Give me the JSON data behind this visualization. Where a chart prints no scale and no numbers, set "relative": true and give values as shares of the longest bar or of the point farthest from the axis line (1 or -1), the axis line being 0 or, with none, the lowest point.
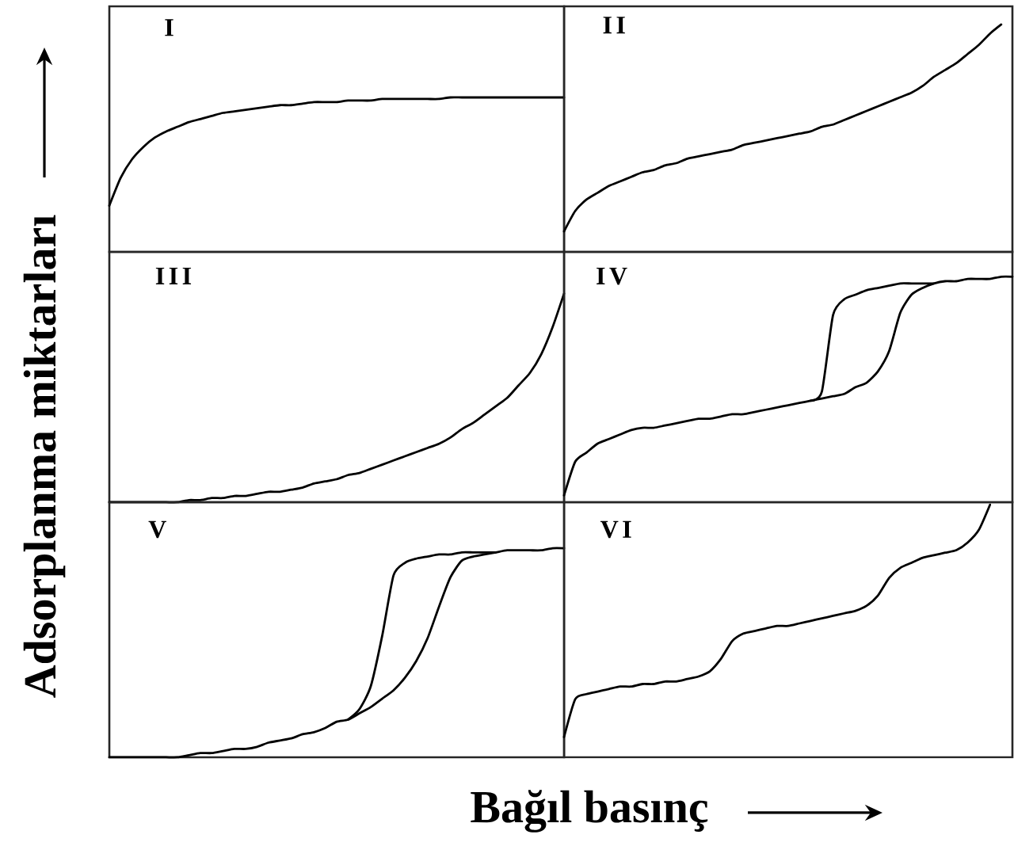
{
  "chart_data": [
    {
      "type": "line",
      "title": "I",
      "relative": true,
      "categories": [
        null,
        null,
        null,
        null,
        null,
        null,
        null,
        null,
        null,
        null,
        null,
        null,
        null,
        null,
        null,
        null,
        null,
        null,
        null,
        null,
        null,
        null,
        null,
        null,
        null,
        null,
        null,
        null,
        null,
        null,
        null,
        null,
        null,
        null,
        null,
        null,
        null,
        null,
        null,
        null,
        null
      ],
      "series": [
        {
          "color": "#000000",
          "values": [
            0.3,
            0.48,
            0.6,
            0.68,
            0.74,
            0.78,
            0.81,
            0.84,
            0.86,
            0.88,
            0.9,
            0.91,
            0.92,
            0.93,
            0.94,
            0.95,
            0.95,
            0.96,
            0.97,
            0.97,
            0.97,
            0.98,
            0.98,
            0.98,
            0.99,
            0.99,
            0.99,
            0.99,
            0.99,
            0.99,
            1.0,
            1.0,
            1.0,
            1.0,
            1.0,
            1.0,
            1.0,
            1.0,
            1.0,
            1.0,
            1.0
          ]
        }
      ]
    },
    {
      "type": "line",
      "title": "II",
      "relative": true,
      "categories": [
        null,
        null,
        null,
        null,
        null,
        null,
        null,
        null,
        null,
        null,
        null,
        null,
        null,
        null,
        null,
        null,
        null,
        null,
        null,
        null,
        null,
        null,
        null,
        null,
        null,
        null,
        null,
        null,
        null,
        null,
        null,
        null,
        null,
        null,
        null,
        null,
        null,
        null,
        null,
        null,
        null
      ],
      "series": [
        {
          "color": "#000000",
          "values": [
            0.09,
            0.18,
            0.23,
            0.26,
            0.29,
            0.31,
            0.33,
            0.35,
            0.36,
            0.38,
            0.39,
            0.41,
            0.42,
            0.43,
            0.44,
            0.45,
            0.47,
            0.48,
            0.49,
            0.5,
            0.51,
            0.52,
            0.53,
            0.55,
            0.56,
            0.58,
            0.6,
            0.62,
            0.64,
            0.66,
            0.68,
            0.7,
            0.73,
            0.77,
            0.8,
            0.83,
            0.87,
            0.91,
            0.96,
            1.0,
            null
          ]
        }
      ]
    },
    {
      "type": "line",
      "title": "III",
      "relative": true,
      "ylabel": "Adsorplanma miktarları",
      "categories": [
        null,
        null,
        null,
        null,
        null,
        null,
        null,
        null,
        null,
        null,
        null,
        null,
        null,
        null,
        null,
        null,
        null,
        null,
        null,
        null,
        null,
        null,
        null,
        null,
        null,
        null,
        null,
        null,
        null,
        null,
        null,
        null,
        null,
        null,
        null,
        null,
        null,
        null,
        null,
        null,
        null
      ],
      "series": [
        {
          "color": "#000000",
          "values": [
            0,
            0,
            0,
            0,
            0,
            0,
            0,
            0.01,
            0.01,
            0.02,
            0.02,
            0.03,
            0.03,
            0.04,
            0.05,
            0.05,
            0.06,
            0.07,
            0.09,
            0.1,
            0.11,
            0.13,
            0.14,
            0.16,
            0.18,
            0.2,
            0.22,
            0.24,
            0.26,
            0.28,
            0.31,
            0.35,
            0.38,
            0.42,
            0.46,
            0.5,
            0.56,
            0.62,
            0.71,
            0.84,
            1.0
          ]
        }
      ]
    },
    {
      "type": "line",
      "title": "IV",
      "relative": true,
      "categories": [
        null,
        null,
        null,
        null,
        null,
        null,
        null,
        null,
        null,
        null,
        null,
        null,
        null,
        null,
        null,
        null,
        null,
        null,
        null,
        null,
        null,
        null,
        null,
        null,
        null,
        null,
        null,
        null,
        null,
        null,
        null,
        null,
        null,
        null,
        null,
        null,
        null,
        null,
        null,
        null,
        null
      ],
      "series": [
        {
          "color": "#000000",
          "values": [
            0.03,
            0.18,
            0.22,
            0.26,
            0.28,
            0.3,
            0.32,
            0.33,
            0.33,
            0.34,
            0.35,
            0.36,
            0.37,
            0.37,
            0.38,
            0.39,
            0.39,
            0.4,
            0.41,
            0.42,
            0.43,
            0.44,
            0.45,
            0.46,
            0.47,
            0.48,
            0.51,
            0.53,
            0.58,
            0.67,
            0.84,
            0.92,
            0.95,
            0.97,
            0.98,
            0.98,
            0.99,
            0.99,
            0.99,
            1.0,
            1.0
          ]
        },
        {
          "color": "#000000",
          "values": [
            null,
            null,
            null,
            null,
            null,
            null,
            null,
            null,
            null,
            null,
            null,
            null,
            null,
            null,
            null,
            null,
            null,
            null,
            null,
            null,
            null,
            null,
            0.45,
            0.49,
            0.83,
            0.9,
            0.92,
            0.94,
            0.95,
            0.96,
            0.97,
            0.97,
            0.97,
            0.97,
            null,
            null,
            null,
            null,
            null,
            null,
            null
          ]
        }
      ]
    },
    {
      "type": "line",
      "title": "V",
      "relative": true,
      "categories": [
        null,
        null,
        null,
        null,
        null,
        null,
        null,
        null,
        null,
        null,
        null,
        null,
        null,
        null,
        null,
        null,
        null,
        null,
        null,
        null,
        null,
        null,
        null,
        null,
        null,
        null,
        null,
        null,
        null,
        null,
        null,
        null,
        null,
        null,
        null,
        null,
        null,
        null,
        null,
        null,
        null
      ],
      "series": [
        {
          "color": "#000000",
          "values": [
            0,
            0,
            0,
            0,
            0,
            0,
            0,
            0.01,
            0.02,
            0.02,
            0.03,
            0.04,
            0.04,
            0.05,
            0.07,
            0.08,
            0.09,
            0.11,
            0.12,
            0.14,
            0.17,
            0.18,
            0.21,
            0.24,
            0.28,
            0.32,
            0.38,
            0.46,
            0.57,
            0.72,
            0.86,
            0.94,
            0.96,
            0.97,
            0.98,
            0.99,
            0.99,
            0.99,
            0.99,
            1.0,
            1.0
          ]
        },
        {
          "color": "#000000",
          "values": [
            null,
            null,
            null,
            null,
            null,
            null,
            null,
            null,
            null,
            null,
            null,
            null,
            null,
            null,
            null,
            null,
            null,
            null,
            null,
            null,
            null,
            0.18,
            0.23,
            0.34,
            0.58,
            0.87,
            0.93,
            0.95,
            0.96,
            0.97,
            0.97,
            0.98,
            0.98,
            0.98,
            0.98,
            null,
            null,
            null,
            null,
            null,
            null
          ]
        }
      ]
    },
    {
      "type": "line",
      "title": "VI",
      "relative": true,
      "xlabel": "Bağıl basınç",
      "categories": [
        null,
        null,
        null,
        null,
        null,
        null,
        null,
        null,
        null,
        null,
        null,
        null,
        null,
        null,
        null,
        null,
        null,
        null,
        null,
        null,
        null,
        null,
        null,
        null,
        null,
        null,
        null,
        null,
        null,
        null,
        null,
        null,
        null,
        null,
        null,
        null,
        null,
        null,
        null,
        null,
        null
      ],
      "series": [
        {
          "color": "#000000",
          "values": [
            0.08,
            0.23,
            0.25,
            0.26,
            0.27,
            0.28,
            0.28,
            0.29,
            0.29,
            0.3,
            0.3,
            0.31,
            0.32,
            0.34,
            0.39,
            0.46,
            0.49,
            0.5,
            0.51,
            0.52,
            0.52,
            0.53,
            0.54,
            0.55,
            0.56,
            0.57,
            0.58,
            0.6,
            0.64,
            0.71,
            0.75,
            0.77,
            0.79,
            0.8,
            0.81,
            0.82,
            0.85,
            0.9,
            1.0,
            null,
            null
          ]
        }
      ]
    }
  ]
}
